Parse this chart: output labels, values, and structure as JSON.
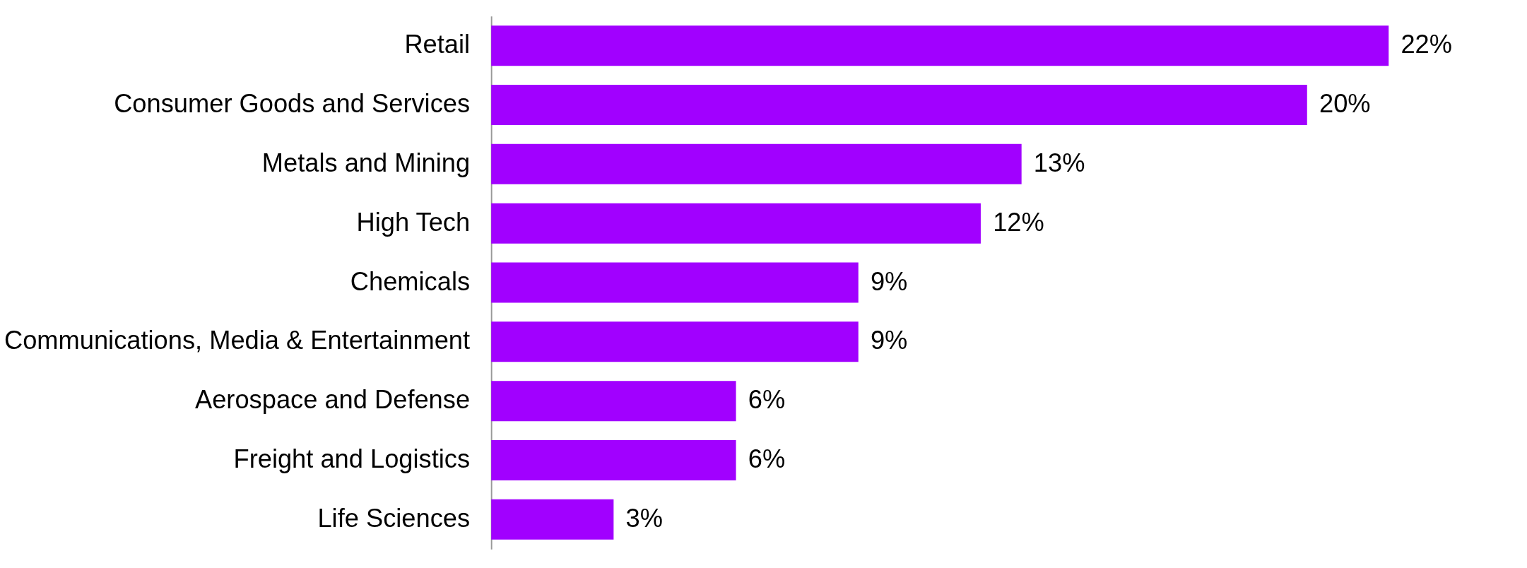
{
  "chart_data": {
    "type": "bar",
    "orientation": "horizontal",
    "categories": [
      "Retail",
      "Consumer Goods and Services",
      "Metals and Mining",
      "High Tech",
      "Chemicals",
      "Communications, Media & Entertainment",
      "Aerospace and Defense",
      "Freight and Logistics",
      "Life Sciences"
    ],
    "values": [
      22,
      20,
      13,
      12,
      9,
      9,
      6,
      6,
      3
    ],
    "value_labels": [
      "22%",
      "20%",
      "13%",
      "12%",
      "9%",
      "9%",
      "6%",
      "6%",
      "3%"
    ],
    "color": "#a100ff",
    "tick_labels": "y",
    "grid": false
  }
}
